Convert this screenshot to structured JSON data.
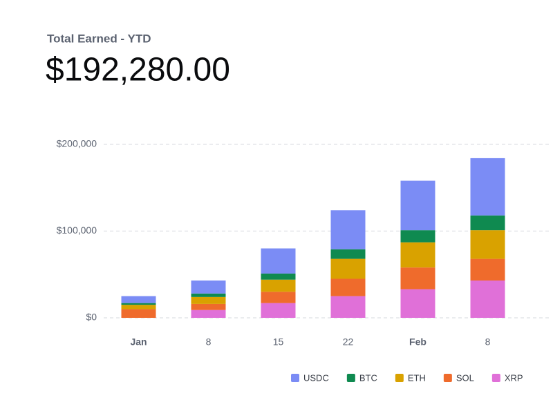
{
  "header": {
    "label": "Total Earned - YTD",
    "amount": "$192,280.00"
  },
  "chart_data": {
    "type": "stacked-bar",
    "categories": [
      "Jan",
      "8",
      "15",
      "22",
      "Feb",
      "8"
    ],
    "series": [
      {
        "name": "USDC",
        "color": "#7b8cf5",
        "values": [
          8000,
          15000,
          29000,
          45000,
          57000,
          66000
        ]
      },
      {
        "name": "BTC",
        "color": "#0f8a50",
        "values": [
          2000,
          4000,
          7000,
          11000,
          14000,
          17000
        ]
      },
      {
        "name": "ETH",
        "color": "#d9a200",
        "values": [
          5000,
          8000,
          14000,
          23000,
          29000,
          33000
        ]
      },
      {
        "name": "SOL",
        "color": "#ef6b2c",
        "values": [
          10000,
          7000,
          13000,
          20000,
          25000,
          25000
        ]
      },
      {
        "name": "XRP",
        "color": "#e070d8",
        "values": [
          0,
          9000,
          17000,
          25000,
          33000,
          43000
        ]
      }
    ],
    "ylim": [
      0,
      215000
    ],
    "yticks": [
      {
        "value": 0,
        "label": "$0"
      },
      {
        "value": 100000,
        "label": "$100,000"
      },
      {
        "value": 200000,
        "label": "$200,000"
      }
    ],
    "grid": true,
    "legend": "bottom"
  }
}
